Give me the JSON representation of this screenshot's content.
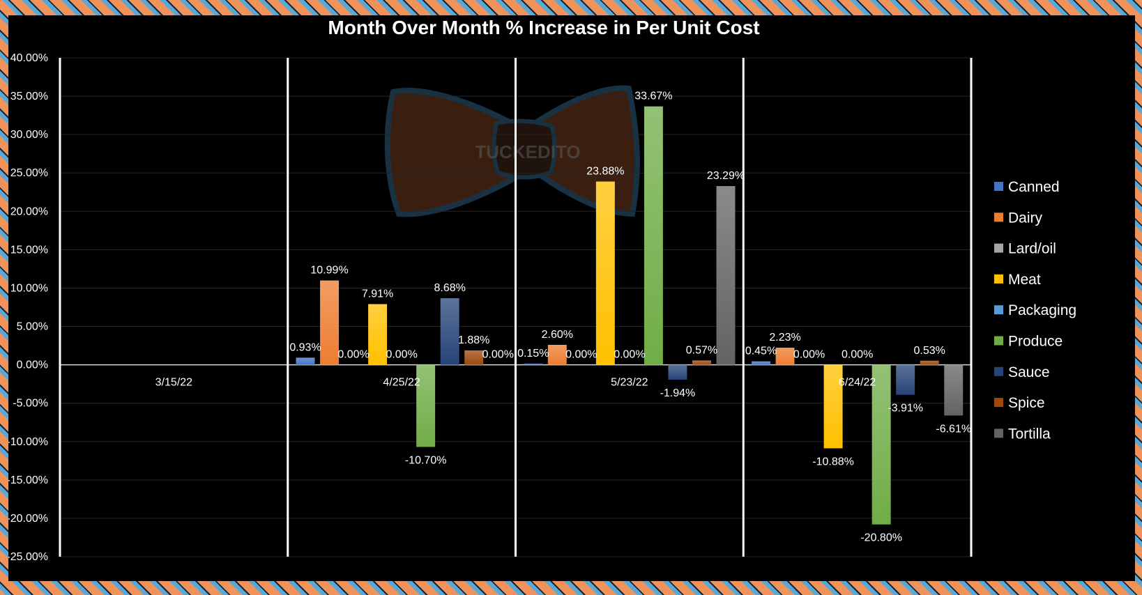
{
  "chart_data": {
    "type": "bar",
    "title": "Month Over Month % Increase in Per Unit Cost",
    "categories": [
      "3/15/22",
      "4/25/22",
      "5/23/22",
      "6/24/22"
    ],
    "ylim": [
      -25,
      40
    ],
    "y_ticks": [
      "40.00%",
      "35.00%",
      "30.00%",
      "25.00%",
      "20.00%",
      "15.00%",
      "10.00%",
      "5.00%",
      "0.00%",
      "-5.00%",
      "-10.00%",
      "-15.00%",
      "-20.00%",
      "-25.00%"
    ],
    "legend_position": "right",
    "watermark": "TUCKEDITO",
    "series": [
      {
        "name": "Canned",
        "color": "#4472c4",
        "values": [
          null,
          0.93,
          0.15,
          0.45
        ],
        "labels": [
          null,
          "0.93%",
          "0.15%",
          "0.45%"
        ]
      },
      {
        "name": "Dairy",
        "color": "#ed7d31",
        "values": [
          null,
          10.99,
          2.6,
          2.23
        ],
        "labels": [
          null,
          "10.99%",
          "2.60%",
          "2.23%"
        ]
      },
      {
        "name": "Lard/oil",
        "color": "#a5a5a5",
        "values": [
          null,
          0.0,
          0.0,
          0.0
        ],
        "labels": [
          null,
          "0.00%",
          "0.00%",
          "0.00%"
        ]
      },
      {
        "name": "Meat",
        "color": "#ffc000",
        "values": [
          null,
          7.91,
          23.88,
          -10.88
        ],
        "labels": [
          null,
          "7.91%",
          "23.88%",
          "-10.88%"
        ]
      },
      {
        "name": "Packaging",
        "color": "#5b9bd5",
        "values": [
          null,
          0.0,
          0.0,
          0.0
        ],
        "labels": [
          null,
          "0.00%",
          "0.00%",
          "0.00%"
        ]
      },
      {
        "name": "Produce",
        "color": "#70ad47",
        "values": [
          null,
          -10.7,
          33.67,
          -20.8
        ],
        "labels": [
          null,
          "-10.70%",
          "33.67%",
          "-20.80%"
        ]
      },
      {
        "name": "Sauce",
        "color": "#264478",
        "values": [
          null,
          8.68,
          -1.94,
          -3.91
        ],
        "labels": [
          null,
          "8.68%",
          "-1.94%",
          "-3.91%"
        ]
      },
      {
        "name": "Spice",
        "color": "#9e480e",
        "values": [
          null,
          1.88,
          0.57,
          0.53
        ],
        "labels": [
          null,
          "1.88%",
          "0.57%",
          "0.53%"
        ]
      },
      {
        "name": "Tortilla",
        "color": "#636363",
        "values": [
          null,
          0.0,
          23.29,
          -6.61
        ],
        "labels": [
          null,
          "0.00%",
          "23.29%",
          "-6.61%"
        ]
      }
    ]
  }
}
